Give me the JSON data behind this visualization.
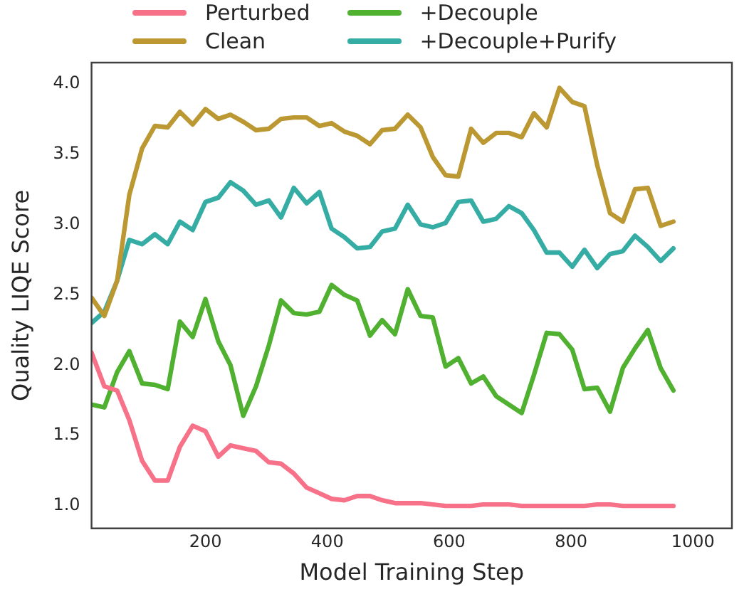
{
  "chart_data": {
    "type": "line",
    "xlabel": "Model Training Step",
    "ylabel": "Quality LIQE Score",
    "x": [
      13,
      34,
      55,
      75,
      96,
      117,
      138,
      158,
      179,
      200,
      221,
      241,
      262,
      283,
      304,
      324,
      345,
      366,
      387,
      407,
      428,
      449,
      470,
      490,
      511,
      532,
      553,
      573,
      594,
      615,
      636,
      656,
      677,
      698,
      719,
      739,
      760,
      781,
      802,
      822,
      843,
      864,
      885,
      905,
      926,
      947,
      968
    ],
    "series": [
      {
        "name": "Perturbed",
        "color": "#f77189",
        "values": [
          2.09,
          1.85,
          1.82,
          1.61,
          1.32,
          1.18,
          1.18,
          1.42,
          1.57,
          1.53,
          1.35,
          1.43,
          1.41,
          1.39,
          1.31,
          1.3,
          1.23,
          1.13,
          1.09,
          1.05,
          1.04,
          1.07,
          1.07,
          1.04,
          1.02,
          1.02,
          1.02,
          1.01,
          1.0,
          1.0,
          1.0,
          1.01,
          1.01,
          1.01,
          1.0,
          1.0,
          1.0,
          1.0,
          1.0,
          1.0,
          1.01,
          1.01,
          1.0,
          1.0,
          1.0,
          1.0,
          1.0
        ]
      },
      {
        "name": "Clean",
        "color": "#bb9832",
        "values": [
          2.48,
          2.35,
          2.6,
          3.21,
          3.54,
          3.7,
          3.69,
          3.8,
          3.71,
          3.82,
          3.75,
          3.78,
          3.73,
          3.67,
          3.68,
          3.75,
          3.76,
          3.76,
          3.7,
          3.72,
          3.66,
          3.63,
          3.57,
          3.67,
          3.68,
          3.78,
          3.69,
          3.48,
          3.35,
          3.34,
          3.68,
          3.58,
          3.65,
          3.65,
          3.62,
          3.79,
          3.69,
          3.97,
          3.87,
          3.84,
          3.42,
          3.08,
          3.02,
          3.25,
          3.26,
          2.99,
          3.02
        ]
      },
      {
        "name": "+Decouple",
        "color": "#50b131",
        "values": [
          1.72,
          1.7,
          1.95,
          2.1,
          1.87,
          1.86,
          1.83,
          2.31,
          2.2,
          2.47,
          2.17,
          2.0,
          1.64,
          1.85,
          2.14,
          2.46,
          2.37,
          2.36,
          2.38,
          2.57,
          2.5,
          2.46,
          2.21,
          2.32,
          2.22,
          2.54,
          2.35,
          2.34,
          1.99,
          2.05,
          1.87,
          1.92,
          1.78,
          1.72,
          1.66,
          1.93,
          2.23,
          2.22,
          2.11,
          1.83,
          1.84,
          1.67,
          1.98,
          2.12,
          2.25,
          1.98,
          1.82
        ]
      },
      {
        "name": "+Decouple+Purify",
        "color": "#36ada4",
        "values": [
          2.3,
          2.38,
          2.6,
          2.89,
          2.86,
          2.93,
          2.86,
          3.02,
          2.96,
          3.16,
          3.19,
          3.3,
          3.24,
          3.14,
          3.17,
          3.05,
          3.26,
          3.15,
          3.23,
          2.97,
          2.91,
          2.83,
          2.84,
          2.95,
          2.97,
          3.14,
          3.0,
          2.98,
          3.01,
          3.16,
          3.17,
          3.02,
          3.04,
          3.13,
          3.08,
          2.96,
          2.8,
          2.8,
          2.7,
          2.82,
          2.69,
          2.79,
          2.81,
          2.92,
          2.84,
          2.74,
          2.83
        ]
      }
    ],
    "xlim": [
      13,
      1064
    ],
    "xticks": [
      200,
      400,
      600,
      800,
      1000
    ],
    "ylim": [
      0.84,
      4.15
    ],
    "yticks": [
      {
        "value": 1,
        "label": "1.0"
      },
      {
        "value": 1.5,
        "label": "1.5"
      },
      {
        "value": 2,
        "label": "2.0"
      },
      {
        "value": 2.5,
        "label": "2.5"
      },
      {
        "value": 3,
        "label": "3.0"
      },
      {
        "value": 3.5,
        "label": "3.5"
      },
      {
        "value": 4,
        "label": "4.0"
      }
    ],
    "grid": false,
    "legend": "top",
    "marker": "none",
    "line_style": "solid"
  }
}
